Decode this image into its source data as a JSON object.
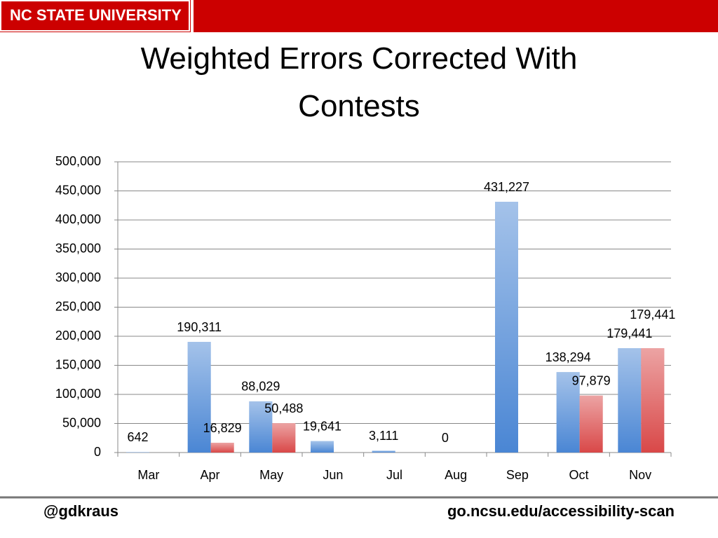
{
  "header": {
    "logo": "NC STATE UNIVERSITY"
  },
  "footer": {
    "left": "@gdkraus",
    "right": "go.ncsu.edu/accessibility-scan"
  },
  "chart_data": {
    "type": "bar",
    "title": "Weighted Errors Corrected With Contests",
    "categories": [
      "Mar",
      "Apr",
      "May",
      "Jun",
      "Jul",
      "Aug",
      "Sep",
      "Oct",
      "Nov"
    ],
    "series": [
      {
        "color": "#4a86d4",
        "values": [
          642,
          190311,
          88029,
          19641,
          3111,
          0,
          431227,
          138294,
          179441
        ],
        "value_labels": [
          "642",
          "190,311",
          "88,029",
          "19,641",
          "3,111",
          "0",
          "431,227",
          "138,294",
          "179,441"
        ]
      },
      {
        "color": "#d94848",
        "values": [
          null,
          16829,
          50488,
          null,
          null,
          null,
          null,
          97879,
          179441
        ],
        "value_labels": [
          null,
          "16,829",
          "50,488",
          null,
          null,
          null,
          null,
          "97,879",
          "179,441"
        ]
      }
    ],
    "ylim": [
      0,
      500000
    ],
    "yticks": [
      0,
      {
        "value": 50000,
        "label": "50,000"
      },
      {
        "value": 100000,
        "label": "100,000"
      },
      {
        "value": 150000,
        "label": "150,000"
      },
      {
        "value": 200000,
        "label": "200,000"
      },
      {
        "value": 250000,
        "label": "250,000"
      },
      {
        "value": 300000,
        "label": "300,000"
      },
      {
        "value": 350000,
        "label": "350,000"
      },
      {
        "value": 400000,
        "label": "400,000"
      },
      {
        "value": 450000,
        "label": "450,000"
      },
      {
        "value": 500000,
        "label": "500,000"
      }
    ],
    "grid": true
  }
}
